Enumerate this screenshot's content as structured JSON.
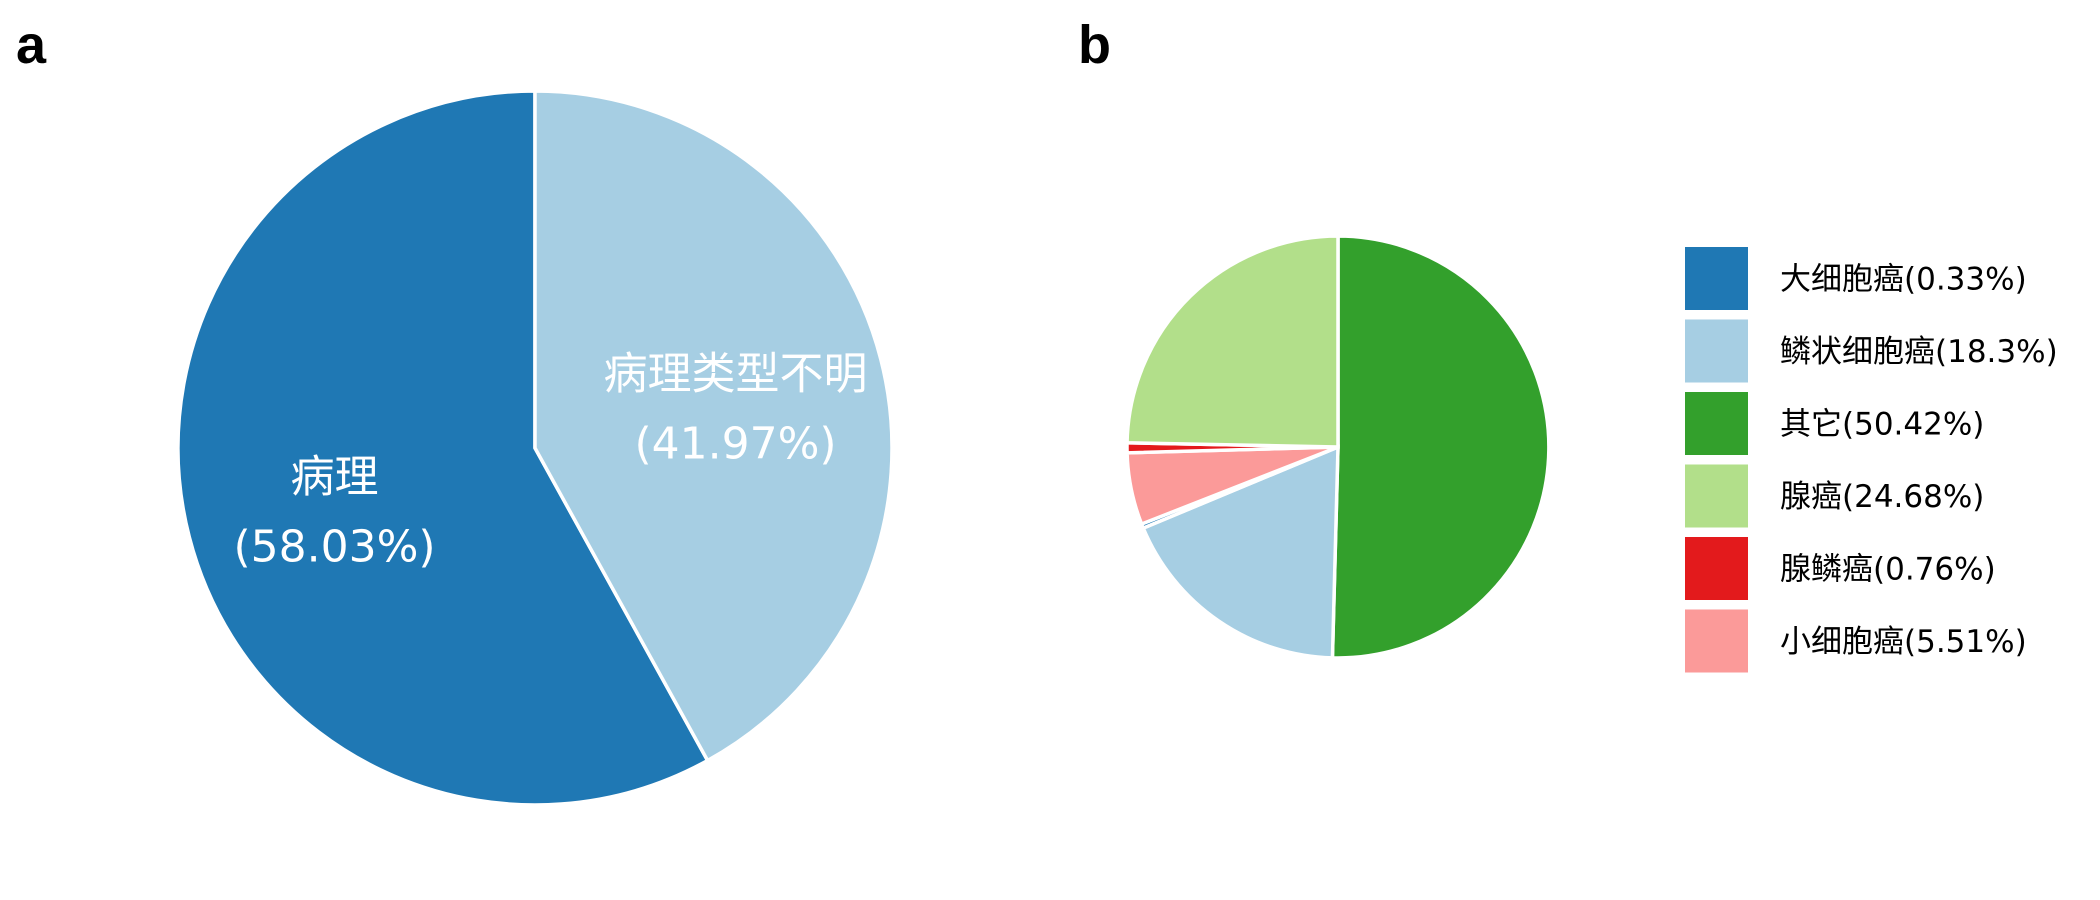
{
  "chart_data": [
    {
      "type": "pie",
      "panel": "a",
      "start": "top",
      "direction": "counterclockwise",
      "slices": [
        {
          "label": "病理",
          "value_label": "(58.03%)",
          "value": 58.03,
          "color": "#1f78b4"
        },
        {
          "label": "病理类型不明",
          "value_label": "(41.97%)",
          "value": 41.97,
          "color": "#a6cee3"
        }
      ]
    },
    {
      "type": "pie",
      "panel": "b",
      "start": "top",
      "direction": "clockwise",
      "legend_position": "right",
      "slices": [
        {
          "label": "大细胞癌(0.33%)",
          "value": 0.33,
          "color": "#1f78b4"
        },
        {
          "label": "鳞状细胞癌(18.3%)",
          "value": 18.3,
          "color": "#a6cee3"
        },
        {
          "label": "其它(50.42%)",
          "value": 50.42,
          "color": "#33a02c"
        },
        {
          "label": "腺癌(24.68%)",
          "value": 24.68,
          "color": "#b2df8a"
        },
        {
          "label": "腺鳞癌(0.76%)",
          "value": 0.76,
          "color": "#e31a1c"
        },
        {
          "label": "小细胞癌(5.51%)",
          "value": 5.51,
          "color": "#fb9a99"
        }
      ],
      "draw_order": [
        2,
        1,
        0,
        5,
        4,
        3
      ]
    }
  ]
}
